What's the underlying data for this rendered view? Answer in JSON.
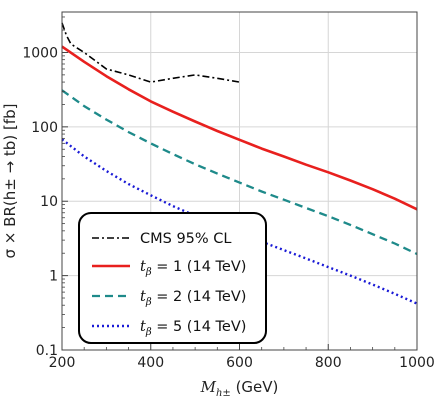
{
  "chart_data": {
    "type": "line",
    "xlim": [
      200,
      1000
    ],
    "ylim": [
      0.1,
      3500
    ],
    "yscale": "log",
    "x_ticks": [
      200,
      400,
      600,
      800,
      1000
    ],
    "y_ticks": [
      {
        "value": 0.1,
        "label": "0.1"
      },
      {
        "value": 1,
        "label": "1"
      },
      {
        "value": 10,
        "label": "10"
      },
      {
        "value": 100,
        "label": "100"
      },
      {
        "value": 1000,
        "label": "1000"
      }
    ],
    "xlabel": {
      "main": "M",
      "sub": "h±",
      "unit": " (GeV)"
    },
    "ylabel": "σ × BR(h± → tb) [fb]",
    "grid": true,
    "legend_position": "bottom-left",
    "series": [
      {
        "name": "CMS 95% CL",
        "legend_label": {
          "kind": "plain",
          "text": "CMS 95% CL"
        },
        "color": "#000000",
        "dash": "7 3 2 3",
        "width": 1.6,
        "x": [
          200,
          210,
          220,
          250,
          300,
          350,
          400,
          450,
          500,
          550,
          600
        ],
        "y": [
          2500,
          1700,
          1300,
          1000,
          600,
          500,
          400,
          450,
          500,
          450,
          400
        ]
      },
      {
        "name": "tβ = 1 (14 TeV)",
        "legend_label": {
          "kind": "tb",
          "value": "1",
          "suffix": " (14 TeV)"
        },
        "color": "#e8201e",
        "dash": "",
        "width": 2.6,
        "x": [
          200,
          250,
          300,
          350,
          400,
          450,
          500,
          550,
          600,
          650,
          700,
          750,
          800,
          850,
          900,
          950,
          1000
        ],
        "y": [
          1200,
          750,
          480,
          320,
          220,
          160,
          118,
          88,
          67,
          51,
          40,
          31,
          24.5,
          19,
          14.5,
          10.8,
          7.8
        ]
      },
      {
        "name": "tβ = 2 (14 TeV)",
        "legend_label": {
          "kind": "tb",
          "value": "2",
          "suffix": " (14 TeV)"
        },
        "color": "#1e8a8a",
        "dash": "8 5",
        "width": 2.3,
        "x": [
          200,
          250,
          300,
          350,
          400,
          450,
          500,
          550,
          600,
          650,
          700,
          750,
          800,
          850,
          900,
          950,
          1000
        ],
        "y": [
          310,
          190,
          125,
          85,
          60,
          43,
          31.5,
          23.5,
          17.8,
          13.5,
          10.5,
          8.1,
          6.3,
          4.8,
          3.6,
          2.7,
          1.95
        ]
      },
      {
        "name": "tβ = 5 (14 TeV)",
        "legend_label": {
          "kind": "tb",
          "value": "5",
          "suffix": " (14 TeV)"
        },
        "color": "#1a1ad6",
        "dash": "2 3",
        "width": 2.4,
        "x": [
          200,
          250,
          300,
          350,
          400,
          450,
          500,
          550,
          600,
          650,
          700,
          750,
          800,
          850,
          900,
          950,
          1000
        ],
        "y": [
          68,
          40,
          25.5,
          17,
          12,
          8.6,
          6.4,
          4.8,
          3.7,
          2.85,
          2.2,
          1.7,
          1.3,
          1.0,
          0.76,
          0.57,
          0.42
        ]
      }
    ]
  }
}
